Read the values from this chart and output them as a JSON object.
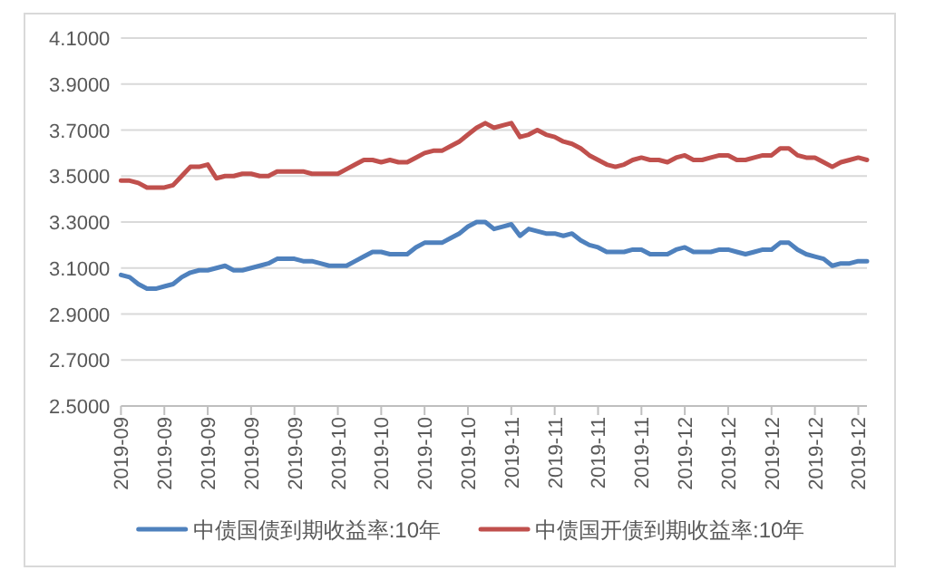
{
  "chart_data": {
    "type": "line",
    "categories": [
      "2019-09",
      null,
      null,
      null,
      null,
      "2019-09",
      null,
      null,
      null,
      null,
      "2019-09",
      null,
      null,
      null,
      null,
      "2019-09",
      null,
      null,
      null,
      null,
      "2019-09",
      null,
      null,
      null,
      null,
      "2019-10",
      null,
      null,
      null,
      null,
      "2019-10",
      null,
      null,
      null,
      null,
      "2019-10",
      null,
      null,
      null,
      null,
      "2019-10",
      null,
      null,
      null,
      null,
      "2019-11",
      null,
      null,
      null,
      null,
      "2019-11",
      null,
      null,
      null,
      null,
      "2019-11",
      null,
      null,
      null,
      null,
      "2019-11",
      null,
      null,
      null,
      null,
      "2019-12",
      null,
      null,
      null,
      null,
      "2019-12",
      null,
      null,
      null,
      null,
      "2019-12",
      null,
      null,
      null,
      null,
      "2019-12",
      null,
      null,
      null,
      null,
      "2019-12",
      null
    ],
    "series": [
      {
        "name": "中债国债到期收益率:10年",
        "color": "#4f81bd",
        "values": [
          3.07,
          3.06,
          3.03,
          3.01,
          3.01,
          3.02,
          3.03,
          3.06,
          3.08,
          3.09,
          3.09,
          3.1,
          3.11,
          3.09,
          3.09,
          3.1,
          3.11,
          3.12,
          3.14,
          3.14,
          3.14,
          3.13,
          3.13,
          3.12,
          3.11,
          3.11,
          3.11,
          3.13,
          3.15,
          3.17,
          3.17,
          3.16,
          3.16,
          3.16,
          3.19,
          3.21,
          3.21,
          3.21,
          3.23,
          3.25,
          3.28,
          3.3,
          3.3,
          3.27,
          3.28,
          3.29,
          3.24,
          3.27,
          3.26,
          3.25,
          3.25,
          3.24,
          3.25,
          3.22,
          3.2,
          3.19,
          3.17,
          3.17,
          3.17,
          3.18,
          3.18,
          3.16,
          3.16,
          3.16,
          3.18,
          3.19,
          3.17,
          3.17,
          3.17,
          3.18,
          3.18,
          3.17,
          3.16,
          3.17,
          3.18,
          3.18,
          3.21,
          3.21,
          3.18,
          3.16,
          3.15,
          3.14,
          3.11,
          3.12,
          3.12,
          3.13,
          3.13
        ]
      },
      {
        "name": "中债国开债到期收益率:10年",
        "color": "#c0504d",
        "values": [
          3.48,
          3.48,
          3.47,
          3.45,
          3.45,
          3.45,
          3.46,
          3.5,
          3.54,
          3.54,
          3.55,
          3.49,
          3.5,
          3.5,
          3.51,
          3.51,
          3.5,
          3.5,
          3.52,
          3.52,
          3.52,
          3.52,
          3.51,
          3.51,
          3.51,
          3.51,
          3.53,
          3.55,
          3.57,
          3.57,
          3.56,
          3.57,
          3.56,
          3.56,
          3.58,
          3.6,
          3.61,
          3.61,
          3.63,
          3.65,
          3.68,
          3.71,
          3.73,
          3.71,
          3.72,
          3.73,
          3.67,
          3.68,
          3.7,
          3.68,
          3.67,
          3.65,
          3.64,
          3.62,
          3.59,
          3.57,
          3.55,
          3.54,
          3.55,
          3.57,
          3.58,
          3.57,
          3.57,
          3.56,
          3.58,
          3.59,
          3.57,
          3.57,
          3.58,
          3.59,
          3.59,
          3.57,
          3.57,
          3.58,
          3.59,
          3.59,
          3.62,
          3.62,
          3.59,
          3.58,
          3.58,
          3.56,
          3.54,
          3.56,
          3.57,
          3.58,
          3.57
        ]
      }
    ],
    "ylim": [
      2.5,
      4.1
    ],
    "yticks": [
      {
        "value": 2.5,
        "label": "2.5000"
      },
      {
        "value": 2.7,
        "label": "2.7000"
      },
      {
        "value": 2.9,
        "label": "2.9000"
      },
      {
        "value": 3.1,
        "label": "3.1000"
      },
      {
        "value": 3.3,
        "label": "3.3000"
      },
      {
        "value": 3.5,
        "label": "3.5000"
      },
      {
        "value": 3.7,
        "label": "3.7000"
      },
      {
        "value": 3.9,
        "label": "3.9000"
      },
      {
        "value": 4.1,
        "label": "4.1000"
      }
    ],
    "grid": "y",
    "legend": "bottom"
  }
}
